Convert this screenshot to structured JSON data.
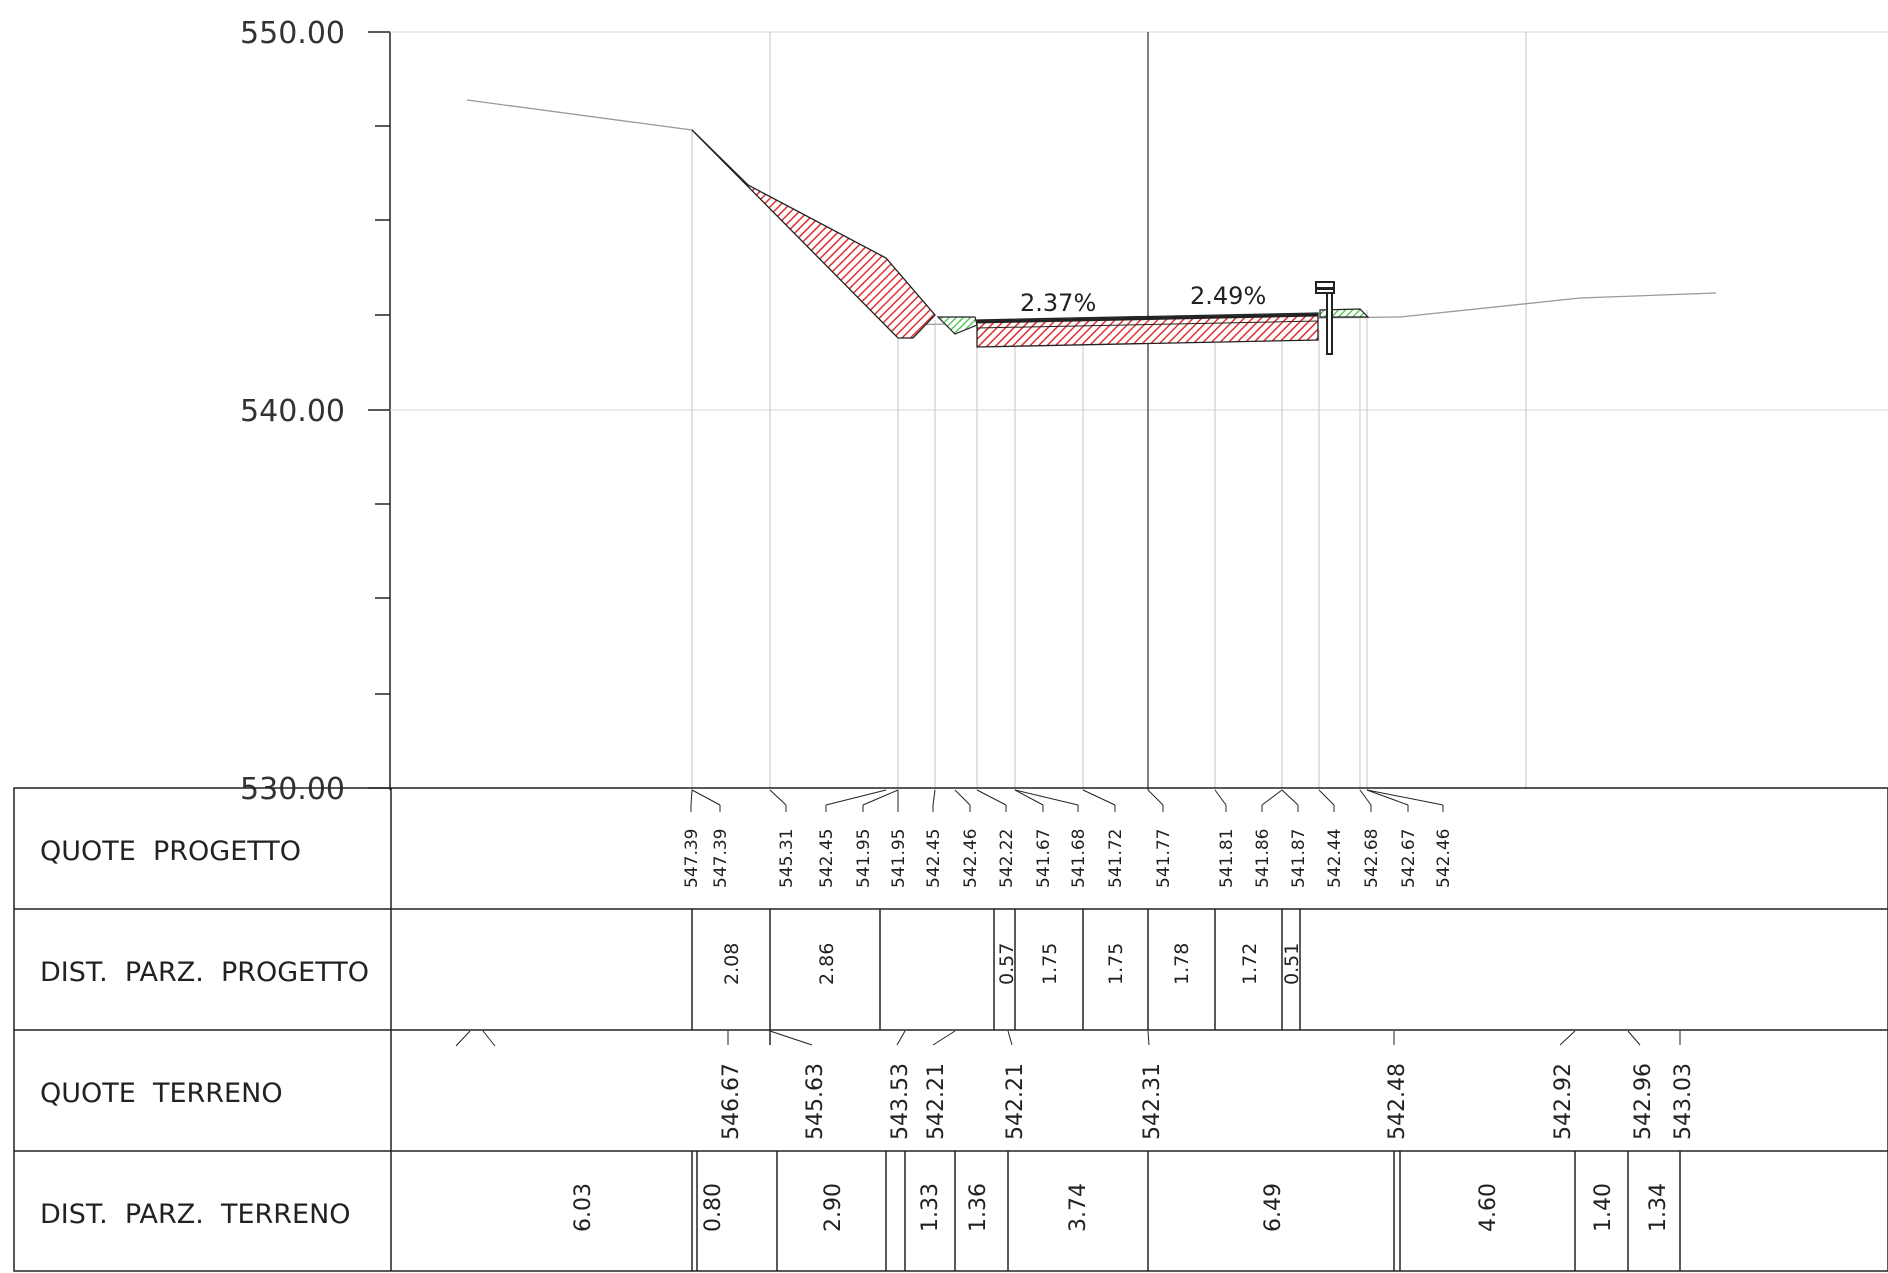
{
  "y_axis": {
    "unit_range": [
      530,
      550
    ],
    "labels": [
      "550.00",
      "540.00",
      "530.00"
    ]
  },
  "table": {
    "rows": [
      {
        "label": "QUOTE  PROGETTO"
      },
      {
        "label": "DIST.  PARZ.  PROGETTO"
      },
      {
        "label": "QUOTE  TERRENO"
      },
      {
        "label": "DIST.  PARZ.  TERRENO"
      }
    ],
    "quote_progetto": [
      "547.39",
      "547.39",
      "545.31",
      "542.45",
      "541.95",
      "541.95",
      "542.45",
      "542.46",
      "542.22",
      "541.67",
      "541.68",
      "541.72",
      "541.77",
      "541.81",
      "541.86",
      "541.87",
      "542.44",
      "542.68",
      "542.67",
      "542.46"
    ],
    "dist_parz_progetto": [
      "2.08",
      "2.86",
      "0.57",
      "1.75",
      "1.75",
      "1.78",
      "1.72",
      "0.51"
    ],
    "quote_terreno": [
      "546.67",
      "545.63",
      "543.53",
      "542.21",
      "542.21",
      "542.31",
      "542.48",
      "542.92",
      "542.96",
      "543.03"
    ],
    "dist_parz_terreno": [
      "6.03",
      "0.80",
      "2.90",
      "1.33",
      "1.36",
      "3.74",
      "6.49",
      "4.60",
      "1.40",
      "1.34"
    ]
  },
  "slopes": [
    "2.37%",
    "2.49%"
  ],
  "colors": {
    "cut_fill": "#e84a4a",
    "green_fill": "#46c846",
    "grid": "#cccccc",
    "line": "#222222"
  }
}
